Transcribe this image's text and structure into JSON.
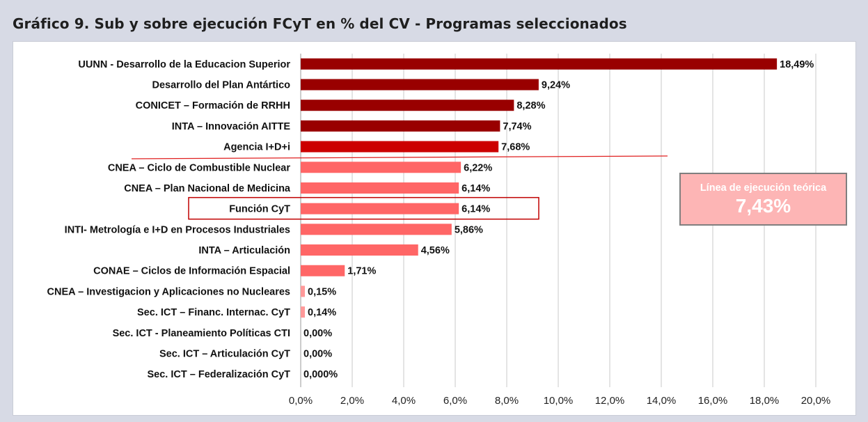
{
  "title": "Gráfico 9. Sub y sobre ejecución FCyT en % del CV - Programas seleccionados",
  "callout": {
    "label": "Línea de ejecución teórica",
    "value": "7,43%"
  },
  "highlighted_category": "Función CyT",
  "colors": {
    "dark": "#990000",
    "medium": "#cc0000",
    "light": "#ff6666",
    "lighter": "#ff9999",
    "line": "#e02020",
    "box": "#c00000"
  },
  "chart_data": {
    "type": "bar",
    "orientation": "horizontal",
    "title": "Gráfico 9. Sub y sobre ejecución FCyT en % del CV - Programas seleccionados",
    "categories": [
      "UUNN - Desarrollo de la Educacion Superior",
      "Desarrollo del Plan Antártico",
      "CONICET – Formación de RRHH",
      "INTA – Innovación AITTE",
      "Agencia I+D+i",
      "CNEA – Ciclo de Combustible Nuclear",
      "CNEA – Plan Nacional de Medicina",
      "Función CyT",
      "INTI- Metrología e I+D en Procesos Industriales",
      "INTA – Articulación",
      "CONAE – Ciclos de Información Espacial",
      "CNEA – Investigacion y Aplicaciones no Nucleares",
      "Sec. ICT – Financ. Internac. CyT",
      "Sec. ICT -  Planeamiento Políticas CTI",
      "Sec. ICT – Articulación CyT",
      "Sec. ICT – Federalización CyT"
    ],
    "values": [
      18.49,
      9.24,
      8.28,
      7.74,
      7.68,
      6.22,
      6.14,
      6.14,
      5.86,
      4.56,
      1.71,
      0.15,
      0.14,
      0.0,
      0.0,
      0.0
    ],
    "value_labels": [
      "18,49%",
      "9,24%",
      "8,28%",
      "7,74%",
      "7,68%",
      "6,22%",
      "6,14%",
      "6,14%",
      "5,86%",
      "4,56%",
      "1,71%",
      "0,15%",
      "0,14%",
      "0,00%",
      "0,00%",
      "0,000%"
    ],
    "bar_colors": [
      "#990000",
      "#990000",
      "#990000",
      "#990000",
      "#cc0000",
      "#ff6666",
      "#ff6666",
      "#ff6666",
      "#ff6666",
      "#ff6666",
      "#ff6666",
      "#ff9999",
      "#ff9999",
      "#ff9999",
      "#ff9999",
      "#ff9999"
    ],
    "xlim": [
      0,
      20
    ],
    "x_ticks": [
      0,
      2,
      4,
      6,
      8,
      10,
      12,
      14,
      16,
      18,
      20
    ],
    "x_tick_labels": [
      "0,0%",
      "2,0%",
      "4,0%",
      "6,0%",
      "8,0%",
      "10,0%",
      "12,0%",
      "14,0%",
      "16,0%",
      "18,0%",
      "20,0%"
    ],
    "reference_line": {
      "label": "Línea de ejecución teórica",
      "value": 7.43,
      "value_label": "7,43%"
    },
    "grid": true,
    "legend": "none"
  }
}
